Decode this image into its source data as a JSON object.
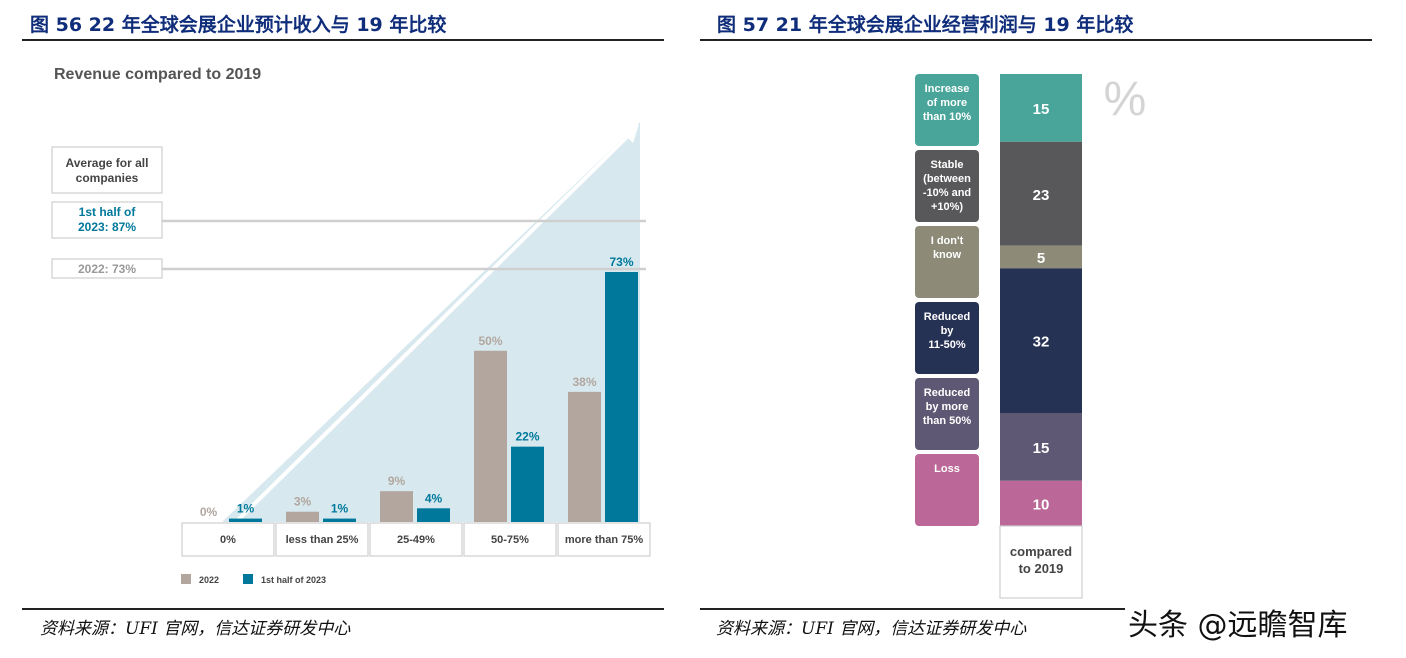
{
  "figures": {
    "left_title": "图 56  22 年全球会展企业预计收入与 19 年比较",
    "right_title": "图 57  21 年全球会展企业经营利润与 19 年比较",
    "left_source": "资料来源：UFI 官网，信达证券研发中心",
    "right_source": "资料来源：UFI 官网，信达证券研发中心",
    "watermark": "头条 @远瞻智库"
  },
  "chart_data": [
    {
      "type": "bar",
      "title": "Revenue compared to 2019",
      "categories": [
        "0%",
        "less than 25%",
        "25-49%",
        "50-75%",
        "more than 75%"
      ],
      "series": [
        {
          "name": "2022",
          "values": [
            0,
            3,
            9,
            50,
            38
          ],
          "labels": [
            "0%",
            "3%",
            "9%",
            "50%",
            "38%"
          ],
          "color": "#b2a69f"
        },
        {
          "name": "1st half of 2023",
          "values": [
            1,
            1,
            4,
            22,
            73
          ],
          "labels": [
            "1%",
            "1%",
            "4%",
            "22%",
            "73%"
          ],
          "color": "#00789b"
        }
      ],
      "ylim": [
        0,
        80
      ],
      "references": [
        {
          "label": "Average for all companies",
          "value": null
        },
        {
          "label": "1st half of 2023: 87%",
          "value": 87
        },
        {
          "label": "2022: 73%",
          "value": 73
        }
      ],
      "legend_position": "bottom-left"
    },
    {
      "type": "bar",
      "stacked": true,
      "category": "compared to 2019",
      "unit": "%",
      "segments": [
        {
          "name": "Increase of more than 10%",
          "lines": [
            "Increase",
            "of more",
            "than 10%"
          ],
          "value": 15,
          "label": "15",
          "color": "#49a49a"
        },
        {
          "name": "Stable (between -10% and +10%)",
          "lines": [
            "Stable",
            "(between",
            "-10% and",
            "+10%)"
          ],
          "value": 23,
          "label": "23",
          "color": "#58585a"
        },
        {
          "name": "I don't know",
          "lines": [
            "I don't",
            "know"
          ],
          "value": 5,
          "label": "5",
          "color": "#8d8b78"
        },
        {
          "name": "Reduced by 11-50%",
          "lines": [
            "Reduced",
            "by",
            "11-50%"
          ],
          "value": 32,
          "label": "32",
          "color": "#263254"
        },
        {
          "name": "Reduced by more than 50%",
          "lines": [
            "Reduced",
            "by more",
            "than 50%"
          ],
          "value": 15,
          "label": "15",
          "color": "#5f5874"
        },
        {
          "name": "Loss",
          "lines": [
            "Loss"
          ],
          "value": 10,
          "label": "10",
          "color": "#bb6797"
        }
      ]
    }
  ]
}
